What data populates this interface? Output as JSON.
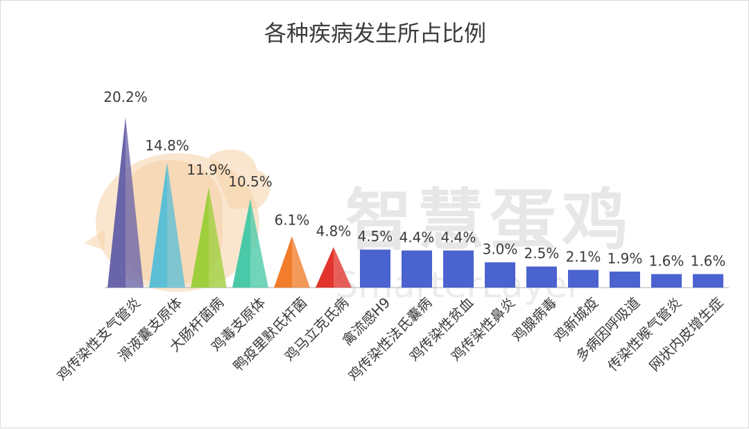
{
  "chart_data": {
    "type": "bar",
    "title": "各种疾病发生所占比例",
    "categories": [
      "鸡传染性支气管炎",
      "滑液囊支原体",
      "大肠杆菌病",
      "鸡毒支原体",
      "鸭疫里默氏杆菌",
      "鸡马立克氏病",
      "禽流感H9",
      "鸡传染性法氏囊病",
      "鸡传染性贫血",
      "鸡传染性鼻炎",
      "鸡腺病毒",
      "鸡新城疫",
      "多病因呼吸道",
      "传染性喉气管炎",
      "网状内皮增生症"
    ],
    "values": [
      20.2,
      14.8,
      11.9,
      10.5,
      6.1,
      4.8,
      4.5,
      4.4,
      4.4,
      3.0,
      2.5,
      2.1,
      1.9,
      1.6,
      1.6
    ],
    "data_labels": [
      "20.2%",
      "14.8%",
      "11.9%",
      "10.5%",
      "6.1%",
      "4.8%",
      "4.5%",
      "4.4%",
      "4.4%",
      "3.0%",
      "2.5%",
      "2.1%",
      "1.9%",
      "1.6%",
      "1.6%"
    ],
    "mark_shapes": [
      "cone",
      "cone",
      "cone",
      "cone",
      "cone",
      "cone",
      "bar",
      "bar",
      "bar",
      "bar",
      "bar",
      "bar",
      "bar",
      "bar",
      "bar"
    ],
    "colors": [
      "#6a64a8",
      "#5cbfd6",
      "#9fce3c",
      "#49c9a7",
      "#f07c2c",
      "#e0342c",
      "#4a63cf",
      "#4a63cf",
      "#4a63cf",
      "#4a63cf",
      "#4a63cf",
      "#4a63cf",
      "#4a63cf",
      "#4a63cf",
      "#4a63cf"
    ],
    "xlabel": "",
    "ylabel": "",
    "ylim": [
      0,
      20.2
    ],
    "grid": false,
    "legend": "none"
  },
  "watermark": {
    "text": "智慧蛋鸡",
    "subtext": "SmarterLayer"
  }
}
